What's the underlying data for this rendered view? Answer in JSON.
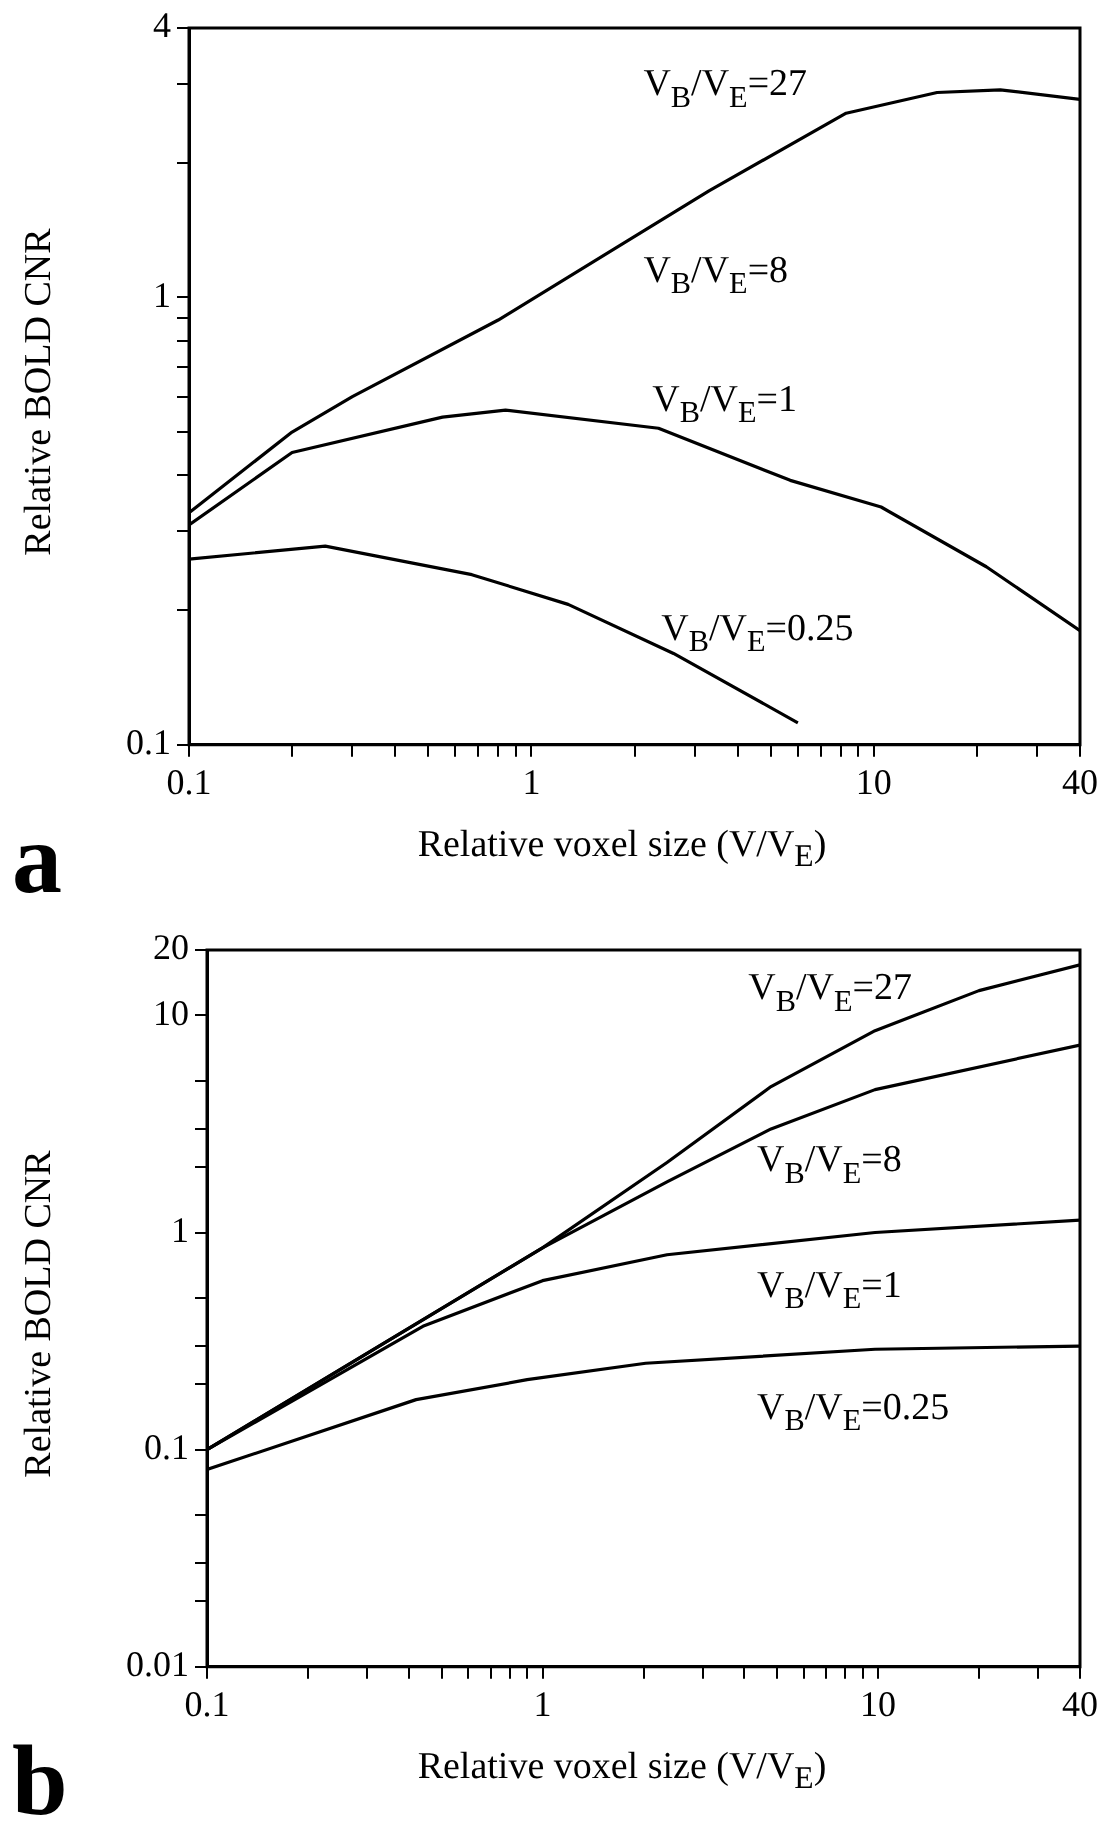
{
  "chart_data": [
    {
      "type": "line",
      "title": "a",
      "xlabel": "Relative voxel size (V/V$_{E}$)",
      "ylabel": "Relative BOLD CNR",
      "log": "xy",
      "grid": false,
      "legend": false,
      "marker": "none",
      "line_style": "solid",
      "xlim": [
        0.1,
        40
      ],
      "ylim": [
        0.1,
        4
      ],
      "xticks": [
        0.1,
        {
          "value": 0.2,
          "label": null
        },
        {
          "value": 0.3,
          "label": null
        },
        {
          "value": 0.4,
          "label": null
        },
        {
          "value": 0.5,
          "label": null
        },
        {
          "value": 0.6,
          "label": null
        },
        {
          "value": 0.7,
          "label": null
        },
        {
          "value": 0.8,
          "label": null
        },
        {
          "value": 0.9,
          "label": null
        },
        1,
        {
          "value": 2,
          "label": null
        },
        {
          "value": 3,
          "label": null
        },
        {
          "value": 4,
          "label": null
        },
        {
          "value": 5,
          "label": null
        },
        {
          "value": 6,
          "label": null
        },
        {
          "value": 7,
          "label": null
        },
        {
          "value": 8,
          "label": null
        },
        {
          "value": 9,
          "label": null
        },
        10,
        {
          "value": 20,
          "label": null
        },
        {
          "value": 30,
          "label": null
        },
        40
      ],
      "yticks": [
        0.1,
        {
          "value": 0.2,
          "label": null
        },
        {
          "value": 0.3,
          "label": null
        },
        {
          "value": 0.4,
          "label": null
        },
        {
          "value": 0.5,
          "label": null
        },
        {
          "value": 0.6,
          "label": null
        },
        {
          "value": 0.7,
          "label": null
        },
        {
          "value": 0.8,
          "label": null
        },
        {
          "value": 0.9,
          "label": null
        },
        1,
        {
          "value": 2,
          "label": null
        },
        {
          "value": 3,
          "label": null
        },
        4
      ],
      "series": [
        {
          "color": "#000000",
          "x": [
            0.1,
            0.2,
            0.3,
            0.8,
            3.3,
            8.3,
            15.3,
            23.4,
            40
          ],
          "values": [
            0.33,
            0.5,
            0.6,
            0.89,
            1.73,
            2.58,
            2.87,
            2.91,
            2.77
          ]
        },
        {
          "color": "#000000",
          "x": [
            0.1,
            0.2,
            0.55,
            0.84,
            2.35,
            5.7,
            10.5,
            21.3,
            40
          ],
          "values": [
            0.31,
            0.45,
            0.54,
            0.56,
            0.51,
            0.39,
            0.34,
            0.25,
            0.18
          ]
        },
        {
          "color": "#000000",
          "x": [
            0.1,
            0.25,
            0.67,
            1.28,
            2.6,
            6.0
          ],
          "values": [
            0.26,
            0.278,
            0.24,
            0.206,
            0.16,
            0.112
          ]
        }
      ],
      "annotations": [
        "V$_{B}$/V$_{E}$=27",
        "V$_{B}$/V$_{E}$=8",
        "V$_{B}$/V$_{E}$=1",
        "V$_{B}$/V$_{E}$=0.25"
      ]
    },
    {
      "type": "line",
      "title": "b",
      "xlabel": "Relative voxel size (V/V$_{E}$)",
      "ylabel": "Relative BOLD CNR",
      "log": "xy",
      "grid": false,
      "legend": false,
      "marker": "none",
      "line_style": "solid",
      "xlim": [
        0.1,
        40
      ],
      "ylim": [
        0.01,
        20
      ],
      "xticks": [
        0.1,
        {
          "value": 0.2,
          "label": null
        },
        {
          "value": 0.3,
          "label": null
        },
        {
          "value": 0.4,
          "label": null
        },
        {
          "value": 0.5,
          "label": null
        },
        {
          "value": 0.6,
          "label": null
        },
        {
          "value": 0.7,
          "label": null
        },
        {
          "value": 0.8,
          "label": null
        },
        {
          "value": 0.9,
          "label": null
        },
        1,
        {
          "value": 2,
          "label": null
        },
        {
          "value": 3,
          "label": null
        },
        {
          "value": 4,
          "label": null
        },
        {
          "value": 5,
          "label": null
        },
        {
          "value": 6,
          "label": null
        },
        {
          "value": 7,
          "label": null
        },
        {
          "value": 8,
          "label": null
        },
        {
          "value": 9,
          "label": null
        },
        10,
        {
          "value": 20,
          "label": null
        },
        {
          "value": 30,
          "label": null
        },
        40
      ],
      "yticks": [
        0.01,
        {
          "value": 0.02,
          "label": null
        },
        {
          "value": 0.03,
          "label": null
        },
        {
          "value": 0.05,
          "label": null
        },
        0.1,
        {
          "value": 0.2,
          "label": null
        },
        {
          "value": 0.3,
          "label": null
        },
        {
          "value": 0.5,
          "label": null
        },
        1,
        {
          "value": 2,
          "label": null
        },
        {
          "value": 3,
          "label": null
        },
        {
          "value": 5,
          "label": null
        },
        10,
        20
      ],
      "series": [
        {
          "color": "#000000",
          "x": [
            0.1,
            1,
            2.35,
            4.8,
            9.8,
            20,
            40
          ],
          "values": [
            0.1,
            0.85,
            2.1,
            4.7,
            8.5,
            13,
            17.1
          ]
        },
        {
          "color": "#000000",
          "x": [
            0.1,
            1,
            2.35,
            4.8,
            9.8,
            40
          ],
          "values": [
            0.1,
            0.85,
            1.71,
            3.0,
            4.55,
            7.3
          ]
        },
        {
          "color": "#000000",
          "x": [
            0.1,
            0.44,
            1,
            2.35,
            9.8,
            40
          ],
          "values": [
            0.1,
            0.37,
            0.6,
            0.79,
            1.0,
            1.14
          ]
        },
        {
          "color": "#000000",
          "x": [
            0.1,
            0.42,
            0.9,
            2.03,
            9.8,
            40
          ],
          "values": [
            0.081,
            0.17,
            0.21,
            0.25,
            0.29,
            0.3
          ]
        }
      ],
      "annotations": [
        "V$_{B}$/V$_{E}$=27",
        "V$_{B}$/V$_{E}$=8",
        "V$_{B}$/V$_{E}$=1",
        "V$_{B}$/V$_{E}$=0.25"
      ]
    }
  ]
}
